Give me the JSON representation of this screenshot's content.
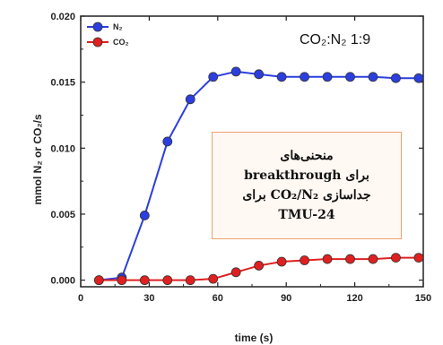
{
  "chart_data": {
    "type": "line",
    "annotation": "CO₂:N₂ 1:9",
    "xlabel": "time  (s)",
    "ylabel": "mmol N₂ or CO₂/s",
    "xlim": [
      0,
      150
    ],
    "ylim": [
      -0.0005,
      0.02
    ],
    "xticks": [
      "0",
      "30",
      "60",
      "90",
      "120",
      "150"
    ],
    "yticks": [
      "0.000",
      "0.005",
      "0.010",
      "0.015",
      "0.020"
    ],
    "legend_position": "top-left",
    "series": [
      {
        "name": "N₂",
        "color": "#2b3fe0",
        "x": [
          8,
          18,
          28,
          38,
          48,
          58,
          68,
          78,
          88,
          98,
          108,
          118,
          128,
          138,
          148
        ],
        "y": [
          0.0,
          0.0002,
          0.0049,
          0.0105,
          0.0137,
          0.0154,
          0.0158,
          0.0156,
          0.0154,
          0.0154,
          0.0154,
          0.0154,
          0.0154,
          0.0153,
          0.0153
        ]
      },
      {
        "name": "CO₂",
        "color": "#e02020",
        "x": [
          8,
          18,
          28,
          38,
          48,
          58,
          68,
          78,
          88,
          98,
          108,
          118,
          128,
          138,
          148
        ],
        "y": [
          0.0,
          0.0,
          0.0,
          0.0,
          0.0,
          0.0001,
          0.0006,
          0.0011,
          0.0014,
          0.0015,
          0.0016,
          0.0016,
          0.0016,
          0.0017,
          0.0017
        ]
      }
    ]
  },
  "callout": {
    "line1": "منحنی‌های",
    "line2": "breakthrough برای",
    "line3": "جداسازی CO₂/N₂ برای",
    "line4": "TMU-24"
  }
}
